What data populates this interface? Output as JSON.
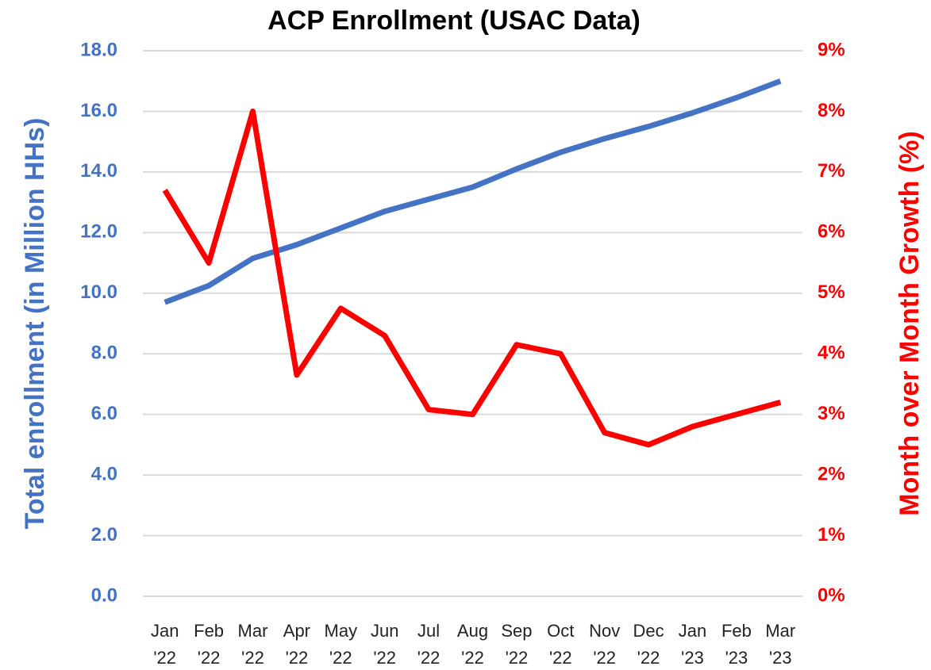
{
  "chart_data": {
    "type": "line",
    "title": "ACP Enrollment (USAC Data)",
    "y_label": "Total enrollment (in Million HHs)",
    "y2_label": "Month over Month Growth (%)",
    "categories": [
      "Jan '22",
      "Feb '22",
      "Mar '22",
      "Apr '22",
      "May '22",
      "Jun '22",
      "Jul '22",
      "Aug '22",
      "Sep '22",
      "Oct '22",
      "Nov '22",
      "Dec '22",
      "Jan '23",
      "Feb '23",
      "Mar '23"
    ],
    "series": [
      {
        "name": "Total enrollment",
        "color": "#4472c4",
        "values": [
          9.7,
          10.25,
          11.15,
          11.6,
          12.15,
          12.7,
          13.1,
          13.5,
          14.1,
          14.65,
          15.1,
          15.5,
          15.95,
          16.45,
          17.0
        ]
      },
      {
        "name": "Month over Month Growth",
        "color": "#ff0000",
        "axis": "y2",
        "values": [
          6.7,
          5.5,
          8.0,
          3.65,
          4.75,
          4.3,
          3.08,
          3.0,
          4.15,
          4.0,
          2.7,
          2.5,
          2.8,
          3.0,
          3.2
        ]
      }
    ],
    "ylim": [
      0,
      18
    ],
    "yticks": [
      {
        "value": 0,
        "label": "0.0"
      },
      {
        "value": 2,
        "label": "2.0"
      },
      {
        "value": 4,
        "label": "4.0"
      },
      {
        "value": 6,
        "label": "6.0"
      },
      {
        "value": 8,
        "label": "8.0"
      },
      {
        "value": 10,
        "label": "10.0"
      },
      {
        "value": 12,
        "label": "12.0"
      },
      {
        "value": 14,
        "label": "14.0"
      },
      {
        "value": 16,
        "label": "16.0"
      },
      {
        "value": 18,
        "label": "18.0"
      }
    ],
    "y2lim": [
      0,
      9
    ],
    "y2ticks": [
      {
        "value": 0,
        "label": "0%"
      },
      {
        "value": 1,
        "label": "1%"
      },
      {
        "value": 2,
        "label": "2%"
      },
      {
        "value": 3,
        "label": "3%"
      },
      {
        "value": 4,
        "label": "4%"
      },
      {
        "value": 5,
        "label": "5%"
      },
      {
        "value": 6,
        "label": "6%"
      },
      {
        "value": 7,
        "label": "7%"
      },
      {
        "value": 8,
        "label": "8%"
      },
      {
        "value": 9,
        "label": "9%"
      }
    ],
    "grid": true
  }
}
